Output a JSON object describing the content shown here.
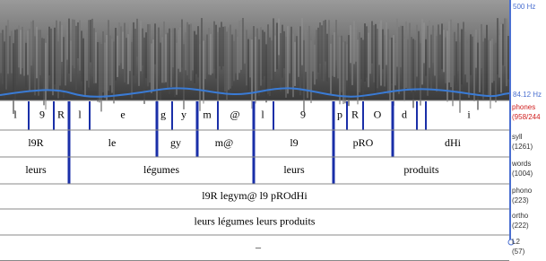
{
  "spectrogram": {
    "top_freq": "500 Hz",
    "bottom_freq": "84.12 Hz"
  },
  "tiers": [
    {
      "name": "phones",
      "count": "(958/244",
      "items": [
        "l",
        "9",
        "R",
        "l",
        "e",
        "g",
        "y",
        "m",
        "@",
        "l",
        "9",
        "p",
        "R",
        "O",
        "d",
        "i"
      ]
    },
    {
      "name": "syll",
      "count": "(1261)",
      "items": [
        "l9R",
        "le",
        "gy",
        "m@",
        "l9",
        "pRO",
        "dHi"
      ]
    },
    {
      "name": "words",
      "count": "(1004)",
      "items": [
        "leurs",
        "légumes",
        "leurs",
        "produits"
      ]
    },
    {
      "name": "phono",
      "count": "(223)",
      "items": [
        "l9R legym@ l9 pROdHi"
      ]
    },
    {
      "name": "ortho",
      "count": "(222)",
      "items": [
        "leurs légumes leurs produits"
      ]
    },
    {
      "name": "L2",
      "count": "(57)",
      "items": [
        "–"
      ]
    }
  ]
}
